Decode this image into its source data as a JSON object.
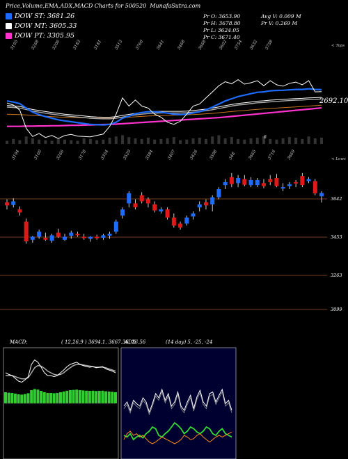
{
  "header": {
    "title": "Price,Volume,EMA,ADX,MACD Charts for 500520",
    "site": "MunafaSutra.com"
  },
  "legend": [
    {
      "label": "DOW ST: 3681.26",
      "color": "#1e6cff"
    },
    {
      "label": "DOW MT: 3605.33",
      "color": "#ffffff"
    },
    {
      "label": "DOW PT: 3305.95",
      "color": "#ff33cc"
    }
  ],
  "ohlc": {
    "open": "Pr  O: 3653.90",
    "high": "Pr  H: 3678.80",
    "low": "Pr  L: 3624.05",
    "close": "Pr  C: 3671.40",
    "avg_vol": "Avg V: 0.009 M",
    "vol": "Pr  V: 0.269 M"
  },
  "top_axis_labels": [
    "3195",
    "3268",
    "3206",
    "3183",
    "3181",
    "3513",
    "3760",
    "3641",
    "3468",
    "3668",
    "3602",
    "3754",
    "3632",
    "3758"
  ],
  "top_label": "< Tops",
  "mid_axis_labels": [
    "3194",
    "3160",
    "3266",
    "3178",
    "3354",
    "3529",
    "3384",
    "3407",
    "3426",
    "3598",
    "348",
    "3665",
    "3716",
    "3669"
  ],
  "low_label": "< Lows",
  "ema_value": "2692.10",
  "misc_marker": "6",
  "price_levels": [
    "3642",
    "3453",
    "3263",
    "3099"
  ],
  "macd_label": "MACD:",
  "macd_values": "( 12,26,9 ) 3694.1,  3667.36,  26.56",
  "adx_label": "ADX",
  "adx_values": "(14  day) 5,  -25,  -24",
  "chart_data": {
    "type": "candlestick",
    "price_levels": [
      3642,
      3453,
      3263,
      3099
    ],
    "candles": [
      {
        "o": 3610,
        "h": 3640,
        "l": 3590,
        "c": 3625,
        "dir": "down"
      },
      {
        "o": 3630,
        "h": 3645,
        "l": 3600,
        "c": 3612,
        "dir": "up"
      },
      {
        "o": 3590,
        "h": 3605,
        "l": 3560,
        "c": 3575,
        "dir": "down"
      },
      {
        "o": 3530,
        "h": 3545,
        "l": 3420,
        "c": 3432,
        "dir": "down"
      },
      {
        "o": 3440,
        "h": 3460,
        "l": 3425,
        "c": 3455,
        "dir": "up"
      },
      {
        "o": 3455,
        "h": 3490,
        "l": 3445,
        "c": 3480,
        "dir": "up"
      },
      {
        "o": 3450,
        "h": 3475,
        "l": 3435,
        "c": 3440,
        "dir": "down"
      },
      {
        "o": 3435,
        "h": 3470,
        "l": 3425,
        "c": 3462,
        "dir": "up"
      },
      {
        "o": 3475,
        "h": 3495,
        "l": 3450,
        "c": 3455,
        "dir": "down"
      },
      {
        "o": 3455,
        "h": 3470,
        "l": 3435,
        "c": 3440,
        "dir": "up"
      },
      {
        "o": 3460,
        "h": 3485,
        "l": 3445,
        "c": 3475,
        "dir": "up"
      },
      {
        "o": 3470,
        "h": 3480,
        "l": 3455,
        "c": 3462,
        "dir": "down"
      },
      {
        "o": 3455,
        "h": 3470,
        "l": 3440,
        "c": 3450,
        "dir": "down"
      },
      {
        "o": 3445,
        "h": 3458,
        "l": 3430,
        "c": 3455,
        "dir": "up"
      },
      {
        "o": 3455,
        "h": 3465,
        "l": 3440,
        "c": 3448,
        "dir": "down"
      },
      {
        "o": 3450,
        "h": 3470,
        "l": 3440,
        "c": 3462,
        "dir": "up"
      },
      {
        "o": 3460,
        "h": 3480,
        "l": 3445,
        "c": 3470,
        "dir": "up"
      },
      {
        "o": 3480,
        "h": 3540,
        "l": 3470,
        "c": 3530,
        "dir": "up"
      },
      {
        "o": 3560,
        "h": 3600,
        "l": 3545,
        "c": 3590,
        "dir": "up"
      },
      {
        "o": 3620,
        "h": 3680,
        "l": 3600,
        "c": 3670,
        "dir": "up"
      },
      {
        "o": 3620,
        "h": 3640,
        "l": 3590,
        "c": 3600,
        "dir": "down"
      },
      {
        "o": 3660,
        "h": 3675,
        "l": 3620,
        "c": 3630,
        "dir": "down"
      },
      {
        "o": 3640,
        "h": 3650,
        "l": 3600,
        "c": 3620,
        "dir": "down"
      },
      {
        "o": 3615,
        "h": 3630,
        "l": 3575,
        "c": 3585,
        "dir": "down"
      },
      {
        "o": 3590,
        "h": 3600,
        "l": 3570,
        "c": 3580,
        "dir": "up"
      },
      {
        "o": 3590,
        "h": 3600,
        "l": 3540,
        "c": 3550,
        "dir": "down"
      },
      {
        "o": 3550,
        "h": 3570,
        "l": 3500,
        "c": 3510,
        "dir": "down"
      },
      {
        "o": 3500,
        "h": 3530,
        "l": 3490,
        "c": 3520,
        "dir": "down"
      },
      {
        "o": 3520,
        "h": 3560,
        "l": 3510,
        "c": 3550,
        "dir": "up"
      },
      {
        "o": 3555,
        "h": 3580,
        "l": 3540,
        "c": 3570,
        "dir": "up"
      },
      {
        "o": 3600,
        "h": 3630,
        "l": 3580,
        "c": 3615,
        "dir": "up"
      },
      {
        "o": 3610,
        "h": 3640,
        "l": 3590,
        "c": 3625,
        "dir": "down"
      },
      {
        "o": 3615,
        "h": 3660,
        "l": 3580,
        "c": 3650,
        "dir": "up"
      },
      {
        "o": 3650,
        "h": 3700,
        "l": 3640,
        "c": 3690,
        "dir": "up"
      },
      {
        "o": 3710,
        "h": 3740,
        "l": 3690,
        "c": 3725,
        "dir": "up"
      },
      {
        "o": 3750,
        "h": 3770,
        "l": 3700,
        "c": 3715,
        "dir": "down"
      },
      {
        "o": 3720,
        "h": 3760,
        "l": 3700,
        "c": 3745,
        "dir": "up"
      },
      {
        "o": 3740,
        "h": 3760,
        "l": 3705,
        "c": 3712,
        "dir": "down"
      },
      {
        "o": 3735,
        "h": 3750,
        "l": 3700,
        "c": 3710,
        "dir": "up"
      },
      {
        "o": 3710,
        "h": 3745,
        "l": 3700,
        "c": 3735,
        "dir": "up"
      },
      {
        "o": 3720,
        "h": 3740,
        "l": 3695,
        "c": 3705,
        "dir": "down"
      },
      {
        "o": 3740,
        "h": 3760,
        "l": 3710,
        "c": 3725,
        "dir": "down"
      },
      {
        "o": 3745,
        "h": 3765,
        "l": 3700,
        "c": 3705,
        "dir": "down"
      },
      {
        "o": 3695,
        "h": 3720,
        "l": 3680,
        "c": 3700,
        "dir": "up"
      },
      {
        "o": 3705,
        "h": 3725,
        "l": 3690,
        "c": 3715,
        "dir": "up"
      },
      {
        "o": 3725,
        "h": 3735,
        "l": 3700,
        "c": 3720,
        "dir": "down"
      },
      {
        "o": 3755,
        "h": 3770,
        "l": 3700,
        "c": 3710,
        "dir": "down"
      },
      {
        "o": 3740,
        "h": 3750,
        "l": 3720,
        "c": 3730,
        "dir": "up"
      },
      {
        "o": 3730,
        "h": 3740,
        "l": 3660,
        "c": 3670,
        "dir": "down"
      },
      {
        "o": 3655,
        "h": 3680,
        "l": 3624,
        "c": 3671,
        "dir": "up"
      }
    ],
    "top_close": [
      3615,
      3605,
      3580,
      3490,
      3450,
      3465,
      3445,
      3455,
      3440,
      3455,
      3460,
      3452,
      3450,
      3448,
      3455,
      3462,
      3500,
      3560,
      3640,
      3600,
      3630,
      3600,
      3590,
      3560,
      3545,
      3520,
      3510,
      3525,
      3560,
      3600,
      3610,
      3640,
      3670,
      3700,
      3720,
      3710,
      3730,
      3708,
      3715,
      3725,
      3700,
      3725,
      3705,
      3698,
      3712,
      3718,
      3705,
      3725,
      3670,
      3671
    ],
    "ema_short": [
      3625,
      3620,
      3612,
      3590,
      3570,
      3558,
      3548,
      3540,
      3532,
      3527,
      3523,
      3518,
      3514,
      3510,
      3508,
      3507,
      3510,
      3520,
      3540,
      3550,
      3562,
      3568,
      3572,
      3572,
      3570,
      3565,
      3560,
      3558,
      3560,
      3566,
      3572,
      3582,
      3595,
      3610,
      3625,
      3636,
      3647,
      3654,
      3661,
      3668,
      3670,
      3675,
      3677,
      3678,
      3680,
      3682,
      3682,
      3685,
      3682,
      3681
    ],
    "ema_mid": [
      3595,
      3593,
      3590,
      3583,
      3575,
      3570,
      3565,
      3560,
      3556,
      3552,
      3549,
      3546,
      3543,
      3540,
      3538,
      3537,
      3537,
      3540,
      3546,
      3551,
      3556,
      3560,
      3563,
      3565,
      3566,
      3566,
      3566,
      3566,
      3567,
      3570,
      3573,
      3577,
      3582,
      3588,
      3594,
      3600,
      3605,
      3608,
      3612,
      3616,
      3618,
      3621,
      3623,
      3625,
      3627,
      3629,
      3630,
      3632,
      3633,
      3635
    ],
    "ema_long": [
      3560,
      3559,
      3558,
      3556,
      3554,
      3552,
      3550,
      3548,
      3546,
      3545,
      3544,
      3543,
      3542,
      3541,
      3540,
      3540,
      3540,
      3541,
      3543,
      3545,
      3547,
      3549,
      3551,
      3552,
      3553,
      3554,
      3555,
      3556,
      3557,
      3558,
      3560,
      3562,
      3564,
      3567,
      3570,
      3573,
      3576,
      3578,
      3581,
      3584,
      3586,
      3588,
      3590,
      3592,
      3594,
      3596,
      3598,
      3600,
      3602,
      3604
    ],
    "ema_pt": [
      3500,
      3500,
      3500,
      3501,
      3501,
      3502,
      3502,
      3503,
      3503,
      3504,
      3505,
      3505,
      3506,
      3507,
      3508,
      3509,
      3510,
      3511,
      3513,
      3515,
      3517,
      3519,
      3521,
      3523,
      3525,
      3527,
      3529,
      3531,
      3533,
      3535,
      3537,
      3539,
      3541,
      3543,
      3546,
      3549,
      3552,
      3555,
      3558,
      3561,
      3564,
      3567,
      3570,
      3573,
      3576,
      3579,
      3582,
      3585,
      3588,
      3591
    ],
    "volume": [
      5,
      8,
      6,
      12,
      9,
      7,
      6,
      5,
      8,
      7,
      6,
      5,
      9,
      8,
      6,
      7,
      10,
      12,
      14,
      11,
      9,
      8,
      10,
      7,
      8,
      9,
      11,
      6,
      7,
      9,
      10,
      8,
      12,
      14,
      9,
      11,
      8,
      7,
      9,
      10,
      12,
      8,
      7,
      9,
      11,
      10,
      8,
      12,
      9,
      10
    ],
    "macd": [
      0.55,
      0.52,
      0.5,
      0.45,
      0.4,
      0.38,
      0.42,
      0.48,
      0.7,
      0.78,
      0.74,
      0.65,
      0.55,
      0.5,
      0.5,
      0.48,
      0.5,
      0.55,
      0.6,
      0.66,
      0.7,
      0.72,
      0.74,
      0.7,
      0.68,
      0.66,
      0.65,
      0.66,
      0.64,
      0.65,
      0.66,
      0.62,
      0.6,
      0.58,
      0.55
    ],
    "macd_signal": [
      0.5,
      0.5,
      0.5,
      0.48,
      0.46,
      0.44,
      0.44,
      0.46,
      0.55,
      0.64,
      0.68,
      0.67,
      0.63,
      0.58,
      0.55,
      0.52,
      0.51,
      0.52,
      0.55,
      0.6,
      0.64,
      0.68,
      0.7,
      0.7,
      0.69,
      0.68,
      0.67,
      0.66,
      0.65,
      0.65,
      0.65,
      0.64,
      0.62,
      0.6,
      0.58
    ],
    "adx_main": [
      0.55,
      0.6,
      0.5,
      0.62,
      0.58,
      0.55,
      0.65,
      0.6,
      0.48,
      0.58,
      0.7,
      0.65,
      0.75,
      0.62,
      0.7,
      0.55,
      0.6,
      0.72,
      0.55,
      0.5,
      0.6,
      0.68,
      0.52,
      0.66,
      0.74,
      0.6,
      0.55,
      0.7,
      0.72,
      0.6,
      0.68,
      0.75,
      0.58,
      0.62,
      0.5
    ],
    "adx_plus": [
      0.2,
      0.18,
      0.22,
      0.15,
      0.18,
      0.2,
      0.17,
      0.22,
      0.25,
      0.3,
      0.28,
      0.2,
      0.18,
      0.22,
      0.25,
      0.3,
      0.35,
      0.32,
      0.28,
      0.22,
      0.25,
      0.3,
      0.28,
      0.24,
      0.22,
      0.25,
      0.3,
      0.28,
      0.22,
      0.2,
      0.25,
      0.28,
      0.22,
      0.2,
      0.18
    ],
    "adx_minus": [
      0.15,
      0.22,
      0.25,
      0.2,
      0.22,
      0.18,
      0.2,
      0.16,
      0.12,
      0.1,
      0.12,
      0.15,
      0.18,
      0.16,
      0.14,
      0.12,
      0.1,
      0.12,
      0.15,
      0.2,
      0.18,
      0.15,
      0.16,
      0.2,
      0.22,
      0.18,
      0.15,
      0.12,
      0.15,
      0.18,
      0.2,
      0.18,
      0.2,
      0.22,
      0.24
    ]
  }
}
